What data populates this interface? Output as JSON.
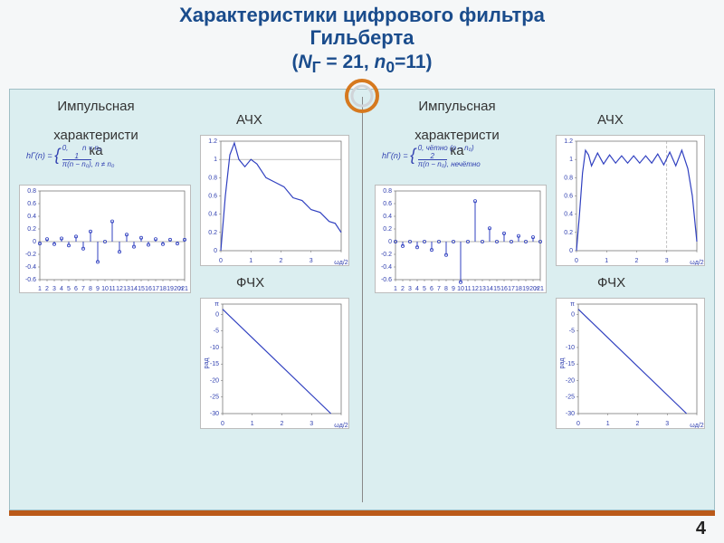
{
  "title_l1": "Характеристики цифрового фильтра",
  "title_l2": "Гильберта",
  "title_params_prefix": "(",
  "title_params_ng": "N",
  "title_params_ng_sub": "Г",
  "title_params_eq1": " = 21, ",
  "title_params_n": "n",
  "title_params_n_sub": "0",
  "title_params_eq2": "=11)",
  "page_number": "4",
  "labels": {
    "impulse": "Импульсная",
    "char": "характеристи",
    "ka": "ка",
    "afr": "АЧХ",
    "pfr": "ФЧХ"
  },
  "formulas": {
    "left_lhs": "hГ(n) =",
    "left_top": "0,",
    "left_top_cond": "n = n₀",
    "left_bot_num": "1",
    "left_bot_den": "π(n − n₀)",
    "left_bot_cond": ", n ≠ n₀",
    "right_lhs": "hГ(n) =",
    "right_top": "0, чётно",
    "right_top_cond": "(n − n₀)",
    "right_bot_num": "2",
    "right_bot_den": "π(n − n₀)",
    "right_bot_cond": ", нечётно"
  },
  "colors": {
    "title": "#1a4c8c",
    "panel_bg": "#dbeef0",
    "chart_line": "#3040c0",
    "grid": "#d8d8d8",
    "axis": "#666666",
    "ring_outer": "#d6791f",
    "footer": "#ba5a1a"
  },
  "ring": {
    "outer_r": 18,
    "inner_r": 13,
    "stroke": 4
  },
  "impulse_left": {
    "xmin": 1,
    "xmax": 21,
    "n0": 11,
    "y_ticks": [
      -0.6,
      -0.4,
      -0.2,
      0,
      0.2,
      0.4,
      0.6,
      0.8
    ],
    "values": [
      -0.03,
      0.04,
      -0.04,
      0.05,
      -0.06,
      0.08,
      -0.11,
      0.16,
      -0.32,
      0,
      0.32,
      -0.16,
      0.11,
      -0.08,
      0.06,
      -0.05,
      0.04,
      -0.04,
      0.03,
      -0.03,
      0.03
    ]
  },
  "impulse_right": {
    "xmin": 1,
    "xmax": 21,
    "n0": 11,
    "y_ticks": [
      -0.6,
      -0.4,
      -0.2,
      0,
      0.2,
      0.4,
      0.6,
      0.8
    ],
    "values": [
      0,
      -0.07,
      0,
      -0.09,
      0,
      -0.13,
      0,
      -0.21,
      0,
      -0.64,
      0,
      0.64,
      0,
      0.21,
      0,
      0.13,
      0,
      0.09,
      0,
      0.07,
      0
    ]
  },
  "afr_left": {
    "y_ticks": [
      0,
      0.2,
      0.4,
      0.6,
      0.8,
      1.0,
      1.2
    ],
    "x_ticks": [
      0,
      1,
      2,
      3,
      4
    ],
    "x_label": "ωд/2",
    "ref_line": 1.0,
    "points": [
      [
        0,
        0
      ],
      [
        0.15,
        0.6
      ],
      [
        0.3,
        1.05
      ],
      [
        0.45,
        1.18
      ],
      [
        0.6,
        1.0
      ],
      [
        0.8,
        0.92
      ],
      [
        1.0,
        1.0
      ],
      [
        1.2,
        0.95
      ],
      [
        1.5,
        0.8
      ],
      [
        1.8,
        0.75
      ],
      [
        2.1,
        0.7
      ],
      [
        2.4,
        0.58
      ],
      [
        2.7,
        0.55
      ],
      [
        3.0,
        0.45
      ],
      [
        3.3,
        0.42
      ],
      [
        3.6,
        0.32
      ],
      [
        3.8,
        0.3
      ],
      [
        4.0,
        0.2
      ]
    ]
  },
  "afr_right": {
    "y_ticks": [
      0,
      0.2,
      0.4,
      0.6,
      0.8,
      1.0,
      1.2
    ],
    "x_ticks": [
      0,
      1,
      2,
      3,
      4
    ],
    "x_label": "ωд/2",
    "ref_line_x": 3.0,
    "points": [
      [
        0,
        0
      ],
      [
        0.1,
        0.4
      ],
      [
        0.2,
        0.85
      ],
      [
        0.3,
        1.1
      ],
      [
        0.4,
        1.05
      ],
      [
        0.5,
        0.93
      ],
      [
        0.7,
        1.07
      ],
      [
        0.9,
        0.95
      ],
      [
        1.1,
        1.05
      ],
      [
        1.3,
        0.96
      ],
      [
        1.5,
        1.04
      ],
      [
        1.7,
        0.96
      ],
      [
        1.9,
        1.04
      ],
      [
        2.1,
        0.96
      ],
      [
        2.3,
        1.04
      ],
      [
        2.5,
        0.96
      ],
      [
        2.7,
        1.06
      ],
      [
        2.9,
        0.94
      ],
      [
        3.1,
        1.08
      ],
      [
        3.3,
        0.93
      ],
      [
        3.5,
        1.1
      ],
      [
        3.7,
        0.9
      ],
      [
        3.85,
        0.6
      ],
      [
        4.0,
        0.1
      ]
    ]
  },
  "pfr": {
    "y_ticks_labels": [
      "π",
      "0",
      "-5",
      "-10",
      "-15",
      "-20",
      "-25",
      "-30"
    ],
    "y_ticks_vals": [
      3.14,
      0,
      -5,
      -10,
      -15,
      -20,
      -25,
      -30
    ],
    "x_ticks": [
      0,
      1,
      2,
      3,
      4
    ],
    "x_label": "ωд/2",
    "y_axis_label": "рад",
    "line": [
      [
        0,
        1.57
      ],
      [
        4,
        -33
      ]
    ]
  }
}
